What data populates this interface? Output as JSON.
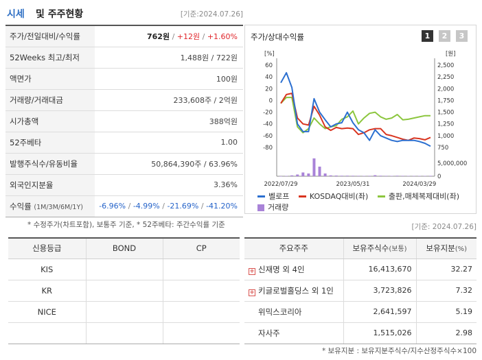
{
  "header": {
    "title_accent": "시세",
    "title_rest": "및 주주현황",
    "date": "[기준:2024.07.26]"
  },
  "stock_info": {
    "rows": [
      {
        "label": "주가/전일대비/수익률",
        "price": "762원",
        "sep1": " / ",
        "change": "+12원",
        "sep2": " / ",
        "rate": "+1.60%"
      },
      {
        "label": "52Weeks 최고/최저",
        "value": "1,488원 / 722원"
      },
      {
        "label": "액면가",
        "value": "100원"
      },
      {
        "label": "거래량/거래대금",
        "value": "233,608주 / 2억원"
      },
      {
        "label": "시가총액",
        "value": "388억원"
      },
      {
        "label": "52주베타",
        "value": "1.00"
      },
      {
        "label": "발행주식수/유동비율",
        "value": "50,864,390주 / 63.96%"
      },
      {
        "label": "외국인지분율",
        "value": "3.36%"
      },
      {
        "label": "수익률",
        "label_sub": "(1M/3M/6M/1Y)",
        "r1": "-6.96%",
        "r2": "-4.99%",
        "r3": "-21.69%",
        "r4": "-41.20%",
        "sep": " / "
      }
    ],
    "note": "* 수정주가(차트포함), 보통주 기준, * 52주베타: 주간수익률 기준"
  },
  "chart_panel": {
    "title": "주가/상대수익률",
    "tabs": [
      "1",
      "2",
      "3"
    ],
    "active_tab": "1",
    "colors": {
      "stock": "#2b6fd0",
      "kosdaq": "#d9341f",
      "sector": "#8cc63e",
      "volume": "#a983d8"
    }
  },
  "chart_data": {
    "type": "line",
    "left_axis_unit": "[%]",
    "right_axis_unit": "[원]",
    "left_ticks": [
      "60",
      "40",
      "20",
      "0",
      "-20",
      "-40",
      "-60",
      "-80"
    ],
    "left_ylim": [
      -80,
      60
    ],
    "right_ticks": [
      "2,500",
      "2,250",
      "2,000",
      "1,750",
      "1,500",
      "1,250",
      "1,000",
      "750"
    ],
    "volume_tick_labels": [
      "5,000,000",
      "0"
    ],
    "x_tick_labels": [
      "2022/07/29",
      "2023/05/31",
      "2024/03/29"
    ],
    "n_points": 28,
    "series": [
      {
        "name": "벨로프",
        "values": [
          30,
          47,
          22,
          -40,
          -53,
          -53,
          3,
          -20,
          -33,
          -45,
          -40,
          -38,
          -20,
          -38,
          -50,
          -55,
          -68,
          -50,
          -60,
          -64,
          -68,
          -70,
          -68,
          -68,
          -68,
          -70,
          -73,
          -78
        ]
      },
      {
        "name": "KOSDAQ대비(좌)",
        "values": [
          -5,
          10,
          12,
          -30,
          -40,
          -42,
          -10,
          -25,
          -45,
          -51,
          -46,
          -48,
          -47,
          -48,
          -58,
          -55,
          -50,
          -48,
          -48,
          -58,
          -60,
          -63,
          -66,
          -68,
          -64,
          -65,
          -67,
          -63
        ]
      },
      {
        "name": "출판,매체복제대비(좌)",
        "values": [
          -5,
          5,
          5,
          -45,
          -55,
          -48,
          -30,
          -40,
          -48,
          -45,
          -43,
          -32,
          -28,
          -18,
          -40,
          -30,
          -22,
          -20,
          -28,
          -32,
          -30,
          -24,
          -33,
          -32,
          -30,
          -28,
          -26,
          -26
        ]
      }
    ],
    "volume": {
      "name": "거래량",
      "ylim": [
        0,
        6000000
      ],
      "values": [
        0,
        100000,
        250000,
        500000,
        1100000,
        800000,
        5200000,
        2800000,
        800000,
        250000,
        200000,
        150000,
        160000,
        140000,
        120000,
        100000,
        120000,
        300000,
        150000,
        120000,
        100000,
        150000,
        120000,
        100000,
        80000,
        100000,
        90000,
        120000
      ]
    }
  },
  "date2": "[기준: 2024.07.26]",
  "credit": {
    "headers": [
      "신용등급",
      "BOND",
      "CP"
    ],
    "rows": [
      {
        "agency": "KIS",
        "bond": "",
        "cp": ""
      },
      {
        "agency": "KR",
        "bond": "",
        "cp": ""
      },
      {
        "agency": "NICE",
        "bond": "",
        "cp": ""
      },
      {
        "agency": "",
        "bond": "",
        "cp": ""
      }
    ]
  },
  "holders": {
    "headers": {
      "name": "주요주주",
      "shares": "보유주식수",
      "shares_unit": "(보통)",
      "ratio": "보유지분",
      "ratio_unit": "(%)"
    },
    "rows": [
      {
        "name": "신재명 외 4인",
        "shares": "16,413,670",
        "ratio": "32.27",
        "expand": true
      },
      {
        "name": "키글로벌홀딩스 외 1인",
        "shares": "3,723,826",
        "ratio": "7.32",
        "expand": true
      },
      {
        "name": "위믹스코리아",
        "shares": "2,641,597",
        "ratio": "5.19",
        "expand": false
      },
      {
        "name": "자사주",
        "shares": "1,515,026",
        "ratio": "2.98",
        "expand": false
      }
    ],
    "note": "* 보유지분 : 보유지분주식수/지수산정주식수×100"
  }
}
